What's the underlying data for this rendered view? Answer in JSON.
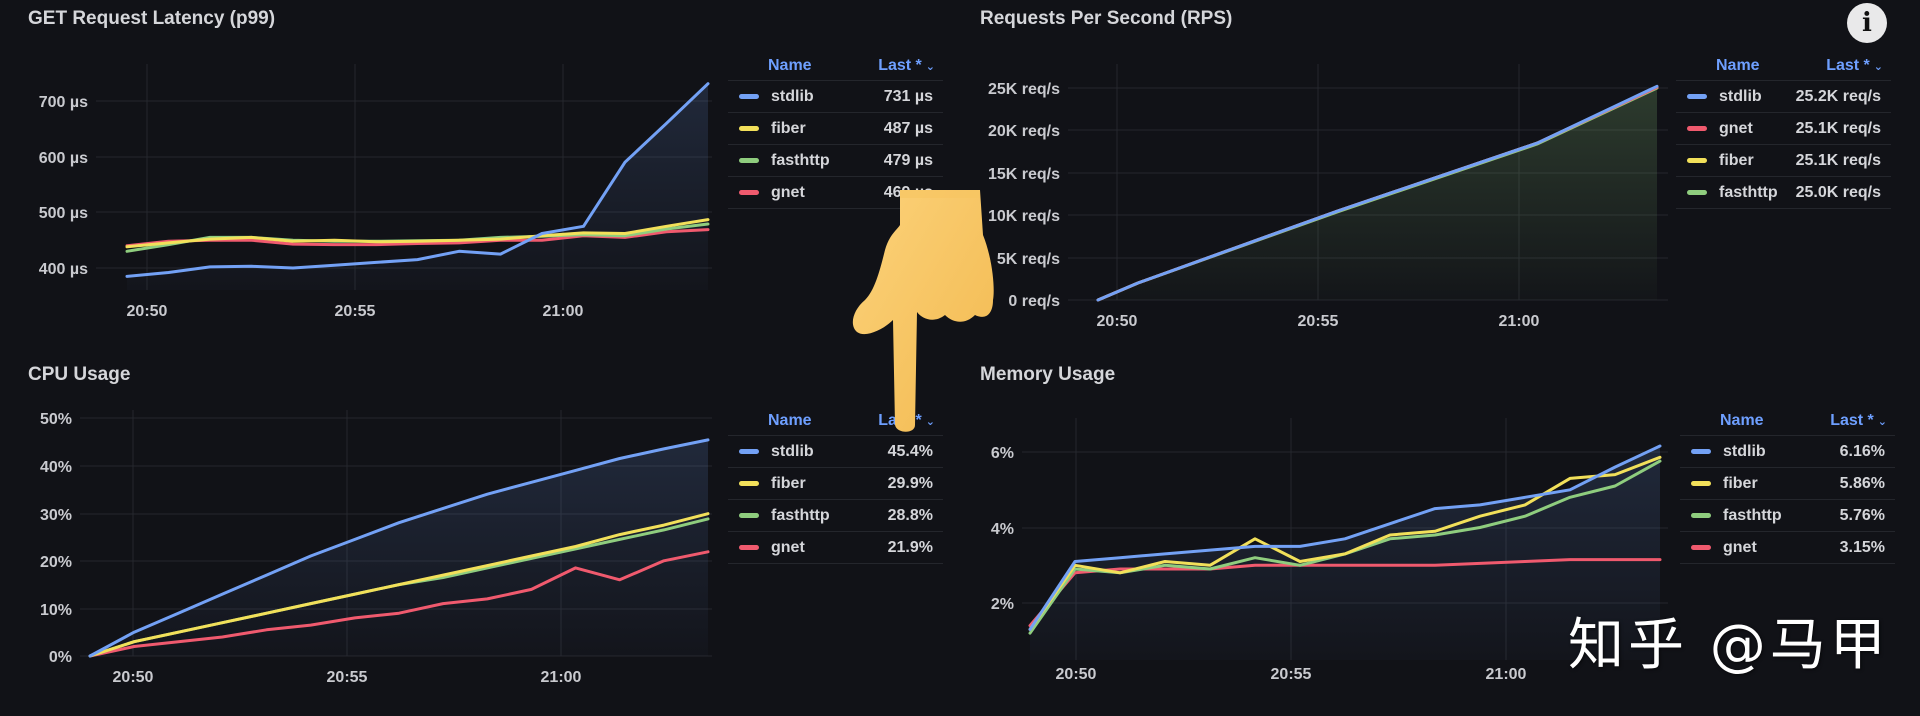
{
  "colors": {
    "stdlib": "#73a1f5",
    "fiber": "#f2e05a",
    "fasthttp": "#8fcd7e",
    "gnet": "#f05a6e",
    "legend_header": "#6e9fff",
    "background": "#111217"
  },
  "info_button": {
    "label": "i",
    "icon": "info-icon"
  },
  "watermark": "知乎 @马甲",
  "overlay": {
    "icon": "pointing-down-hand-icon"
  },
  "legend_headers": {
    "name": "Name",
    "last": "Last *",
    "sort_icon": "⌄"
  },
  "panels": {
    "latency": {
      "title": "GET Request Latency (p99)",
      "legend": [
        {
          "name": "stdlib",
          "last": "731 µs",
          "color": "#73a1f5"
        },
        {
          "name": "fiber",
          "last": "487 µs",
          "color": "#f2e05a"
        },
        {
          "name": "fasthttp",
          "last": "479 µs",
          "color": "#8fcd7e"
        },
        {
          "name": "gnet",
          "last": "469 µs",
          "color": "#f05a6e"
        }
      ]
    },
    "rps": {
      "title": "Requests Per Second (RPS)",
      "legend": [
        {
          "name": "stdlib",
          "last": "25.2K req/s",
          "color": "#73a1f5"
        },
        {
          "name": "gnet",
          "last": "25.1K req/s",
          "color": "#f05a6e"
        },
        {
          "name": "fiber",
          "last": "25.1K req/s",
          "color": "#f2e05a"
        },
        {
          "name": "fasthttp",
          "last": "25.0K req/s",
          "color": "#8fcd7e"
        }
      ]
    },
    "cpu": {
      "title": "CPU Usage",
      "legend": [
        {
          "name": "stdlib",
          "last": "45.4%",
          "color": "#73a1f5"
        },
        {
          "name": "fiber",
          "last": "29.9%",
          "color": "#f2e05a"
        },
        {
          "name": "fasthttp",
          "last": "28.8%",
          "color": "#8fcd7e"
        },
        {
          "name": "gnet",
          "last": "21.9%",
          "color": "#f05a6e"
        }
      ]
    },
    "memory": {
      "title": "Memory Usage",
      "legend": [
        {
          "name": "stdlib",
          "last": "6.16%",
          "color": "#73a1f5"
        },
        {
          "name": "fiber",
          "last": "5.86%",
          "color": "#f2e05a"
        },
        {
          "name": "fasthttp",
          "last": "5.76%",
          "color": "#8fcd7e"
        },
        {
          "name": "gnet",
          "last": "3.15%",
          "color": "#f05a6e"
        }
      ]
    }
  },
  "chart_data": [
    {
      "type": "line",
      "title": "GET Request Latency (p99)",
      "xlabel": "",
      "ylabel": "",
      "x_ticks": [
        "20:50",
        "20:55",
        "21:00"
      ],
      "y_ticks": [
        "400 µs",
        "500 µs",
        "600 µs",
        "700 µs"
      ],
      "ylim": [
        340,
        760
      ],
      "grid": true,
      "legend_position": "right",
      "x": [
        "20:49",
        "20:50",
        "20:51",
        "20:52",
        "20:53",
        "20:54",
        "20:55",
        "20:56",
        "20:57",
        "20:58",
        "20:59",
        "21:00",
        "21:01",
        "21:02",
        "21:03"
      ],
      "series": [
        {
          "name": "stdlib",
          "values": [
            385,
            392,
            402,
            403,
            400,
            405,
            410,
            415,
            430,
            425,
            462,
            475,
            590,
            660,
            731
          ]
        },
        {
          "name": "fiber",
          "values": [
            438,
            445,
            452,
            455,
            448,
            450,
            447,
            448,
            450,
            452,
            458,
            463,
            462,
            475,
            487
          ]
        },
        {
          "name": "fasthttp",
          "values": [
            430,
            442,
            455,
            455,
            450,
            448,
            448,
            449,
            450,
            455,
            457,
            460,
            458,
            470,
            479
          ]
        },
        {
          "name": "gnet",
          "values": [
            440,
            448,
            450,
            450,
            443,
            442,
            442,
            444,
            445,
            450,
            450,
            458,
            455,
            465,
            469
          ]
        }
      ]
    },
    {
      "type": "line",
      "title": "Requests Per Second (RPS)",
      "xlabel": "",
      "ylabel": "",
      "x_ticks": [
        "20:50",
        "20:55",
        "21:00"
      ],
      "y_ticks": [
        "0 req/s",
        "5K req/s",
        "10K req/s",
        "15K req/s",
        "20K req/s",
        "25K req/s"
      ],
      "ylim": [
        0,
        25000
      ],
      "grid": true,
      "legend_position": "right",
      "x": [
        "20:49",
        "20:50",
        "20:55",
        "21:00",
        "21:03"
      ],
      "series": [
        {
          "name": "stdlib",
          "values": [
            0,
            2000,
            10500,
            18500,
            25200
          ]
        },
        {
          "name": "gnet",
          "values": [
            0,
            2000,
            10500,
            18500,
            25100
          ]
        },
        {
          "name": "fiber",
          "values": [
            0,
            2000,
            10500,
            18500,
            25100
          ]
        },
        {
          "name": "fasthttp",
          "values": [
            0,
            2000,
            10400,
            18400,
            25000
          ]
        }
      ]
    },
    {
      "type": "line",
      "title": "CPU Usage",
      "xlabel": "",
      "ylabel": "",
      "x_ticks": [
        "20:50",
        "20:55",
        "21:00"
      ],
      "y_ticks": [
        "0%",
        "10%",
        "20%",
        "30%",
        "40%",
        "50%"
      ],
      "ylim": [
        0,
        50
      ],
      "grid": true,
      "legend_position": "right",
      "x": [
        "20:49",
        "20:50",
        "20:51",
        "20:52",
        "20:53",
        "20:54",
        "20:55",
        "20:56",
        "20:57",
        "20:58",
        "20:59",
        "21:00",
        "21:01",
        "21:02",
        "21:03"
      ],
      "series": [
        {
          "name": "stdlib",
          "values": [
            0,
            5,
            9,
            13,
            17,
            21,
            24.5,
            28,
            31,
            34,
            36.5,
            39,
            41.5,
            43.5,
            45.4
          ]
        },
        {
          "name": "fiber",
          "values": [
            0,
            3,
            5,
            7,
            9,
            11,
            13,
            15,
            17,
            19,
            21,
            23,
            25.5,
            27.5,
            29.9
          ]
        },
        {
          "name": "fasthttp",
          "values": [
            0,
            3,
            5,
            7,
            9,
            11,
            13,
            15,
            16.5,
            18.5,
            20.5,
            22.5,
            24.5,
            26.5,
            28.8
          ]
        },
        {
          "name": "gnet",
          "values": [
            0,
            2,
            3,
            4,
            5.5,
            6.5,
            8,
            9,
            11,
            12,
            14,
            18.5,
            16,
            20,
            21.9
          ]
        }
      ]
    },
    {
      "type": "line",
      "title": "Memory Usage",
      "xlabel": "",
      "ylabel": "",
      "x_ticks": [
        "20:50",
        "20:55",
        "21:00"
      ],
      "y_ticks": [
        "2%",
        "4%",
        "6%"
      ],
      "ylim": [
        0.8,
        6.8
      ],
      "grid": true,
      "legend_position": "right",
      "x": [
        "20:49",
        "20:50",
        "20:51",
        "20:52",
        "20:53",
        "20:54",
        "20:55",
        "20:56",
        "20:57",
        "20:58",
        "20:59",
        "21:00",
        "21:01",
        "21:02",
        "21:03"
      ],
      "series": [
        {
          "name": "stdlib",
          "values": [
            1.3,
            3.1,
            3.2,
            3.3,
            3.4,
            3.5,
            3.5,
            3.7,
            4.1,
            4.5,
            4.6,
            4.8,
            5.0,
            5.6,
            6.16
          ]
        },
        {
          "name": "fiber",
          "values": [
            1.3,
            3.0,
            2.8,
            3.1,
            3.0,
            3.7,
            3.1,
            3.3,
            3.8,
            3.9,
            4.3,
            4.6,
            5.3,
            5.4,
            5.86
          ]
        },
        {
          "name": "fasthttp",
          "values": [
            1.2,
            2.9,
            2.8,
            3.0,
            2.9,
            3.2,
            3.0,
            3.3,
            3.7,
            3.8,
            4.0,
            4.3,
            4.8,
            5.1,
            5.76
          ]
        },
        {
          "name": "gnet",
          "values": [
            1.4,
            2.8,
            2.9,
            2.9,
            2.9,
            3.0,
            3.0,
            3.0,
            3.0,
            3.0,
            3.05,
            3.1,
            3.15,
            3.15,
            3.15
          ]
        }
      ]
    }
  ]
}
